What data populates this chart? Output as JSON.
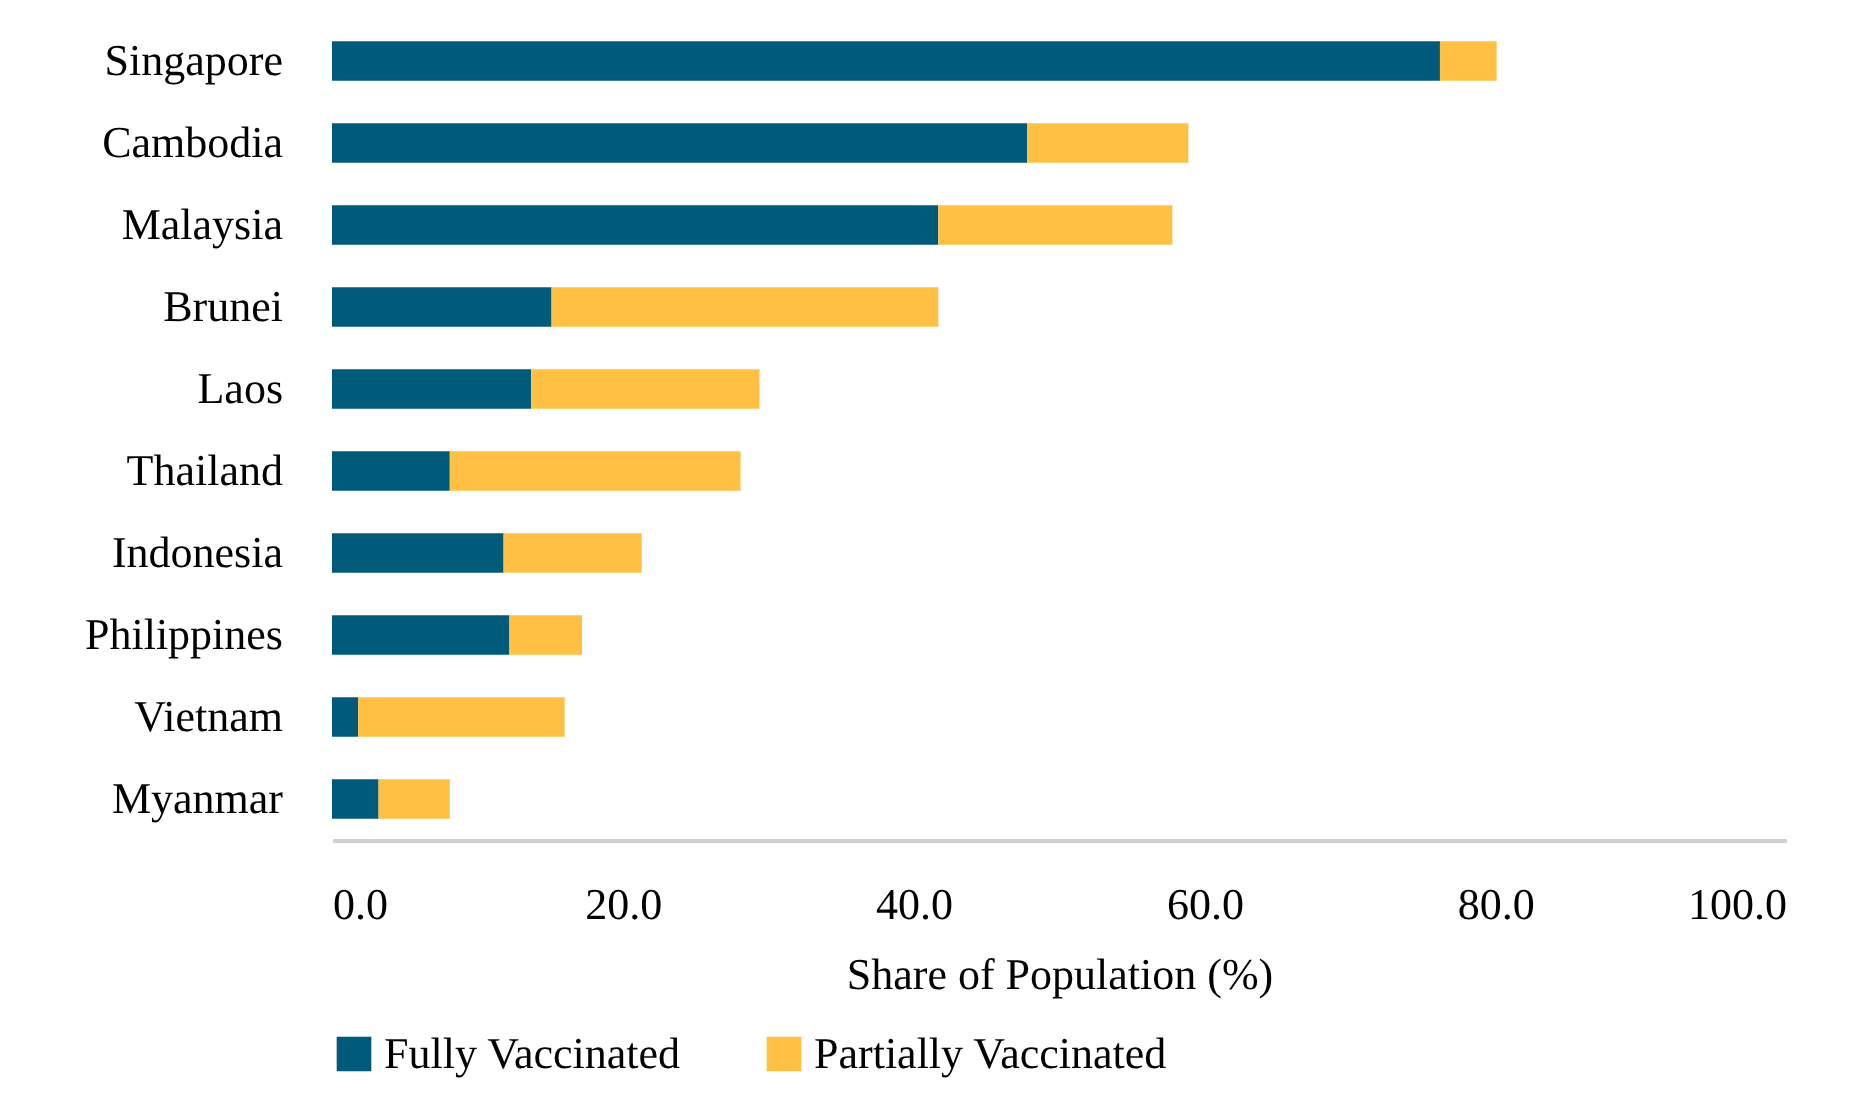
{
  "chart_data": {
    "type": "bar",
    "orientation": "horizontal",
    "stacked": true,
    "xlabel": "Share of Population (%)",
    "categories": [
      "Singapore",
      "Cambodia",
      "Malaysia",
      "Brunei",
      "Laos",
      "Thailand",
      "Indonesia",
      "Philippines",
      "Vietnam",
      "Myanmar"
    ],
    "series": [
      {
        "name": "Fully Vaccinated",
        "color": "#005a7a",
        "values": [
          76.2,
          47.8,
          41.7,
          15.1,
          13.7,
          8.1,
          11.8,
          12.2,
          1.8,
          3.2
        ]
      },
      {
        "name": "Partially Vaccinated",
        "color": "#ffc043",
        "values": [
          3.9,
          11.1,
          16.1,
          26.6,
          15.7,
          20.0,
          9.5,
          5.0,
          14.2,
          4.9
        ]
      }
    ],
    "xlim": [
      0,
      100
    ],
    "xticks": [
      {
        "value": 0,
        "label": "0.0"
      },
      {
        "value": 20,
        "label": "20.0"
      },
      {
        "value": 40,
        "label": "40.0"
      },
      {
        "value": 60,
        "label": "60.0"
      },
      {
        "value": 80,
        "label": "80.0"
      },
      {
        "value": 100,
        "label": "100.0"
      }
    ],
    "legend": "bottom",
    "grid": false
  }
}
